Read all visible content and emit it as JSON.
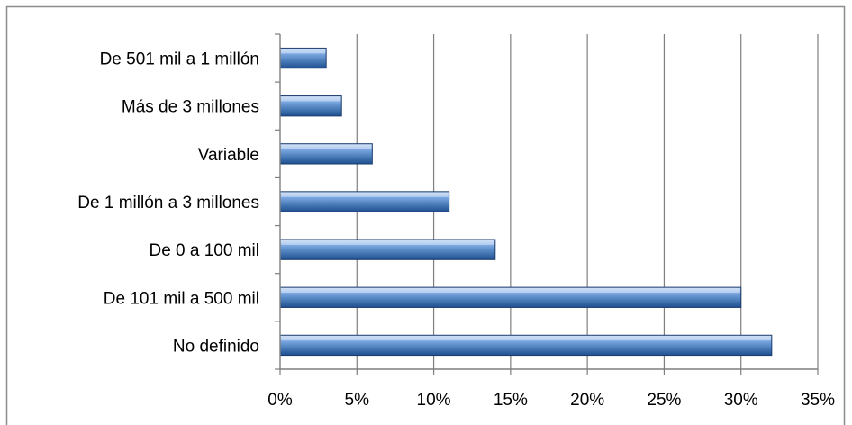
{
  "chart_data": {
    "type": "bar",
    "orientation": "horizontal",
    "categories": [
      "De 501 mil a 1 millón",
      "Más de 3 millones",
      "Variable",
      "De 1 millón a 3 millones",
      "De 0 a 100 mil",
      "De 101 mil a 500 mil",
      "No definido"
    ],
    "values": [
      3,
      4,
      6,
      11,
      14,
      30,
      32
    ],
    "value_unit": "%",
    "xlim": [
      0,
      35
    ],
    "x_ticks": [
      "0%",
      "5%",
      "10%",
      "15%",
      "20%",
      "25%",
      "30%",
      "35%"
    ],
    "grid": "vertical",
    "legend": "none",
    "colors": {
      "bar_light": "#9ec0ee",
      "bar_mid": "#4f81bd",
      "bar_dark": "#1f4f8f",
      "bar_outline": "#1c3d6e",
      "grid": "#7f7f7f",
      "frame": "#8c8c8c"
    }
  }
}
